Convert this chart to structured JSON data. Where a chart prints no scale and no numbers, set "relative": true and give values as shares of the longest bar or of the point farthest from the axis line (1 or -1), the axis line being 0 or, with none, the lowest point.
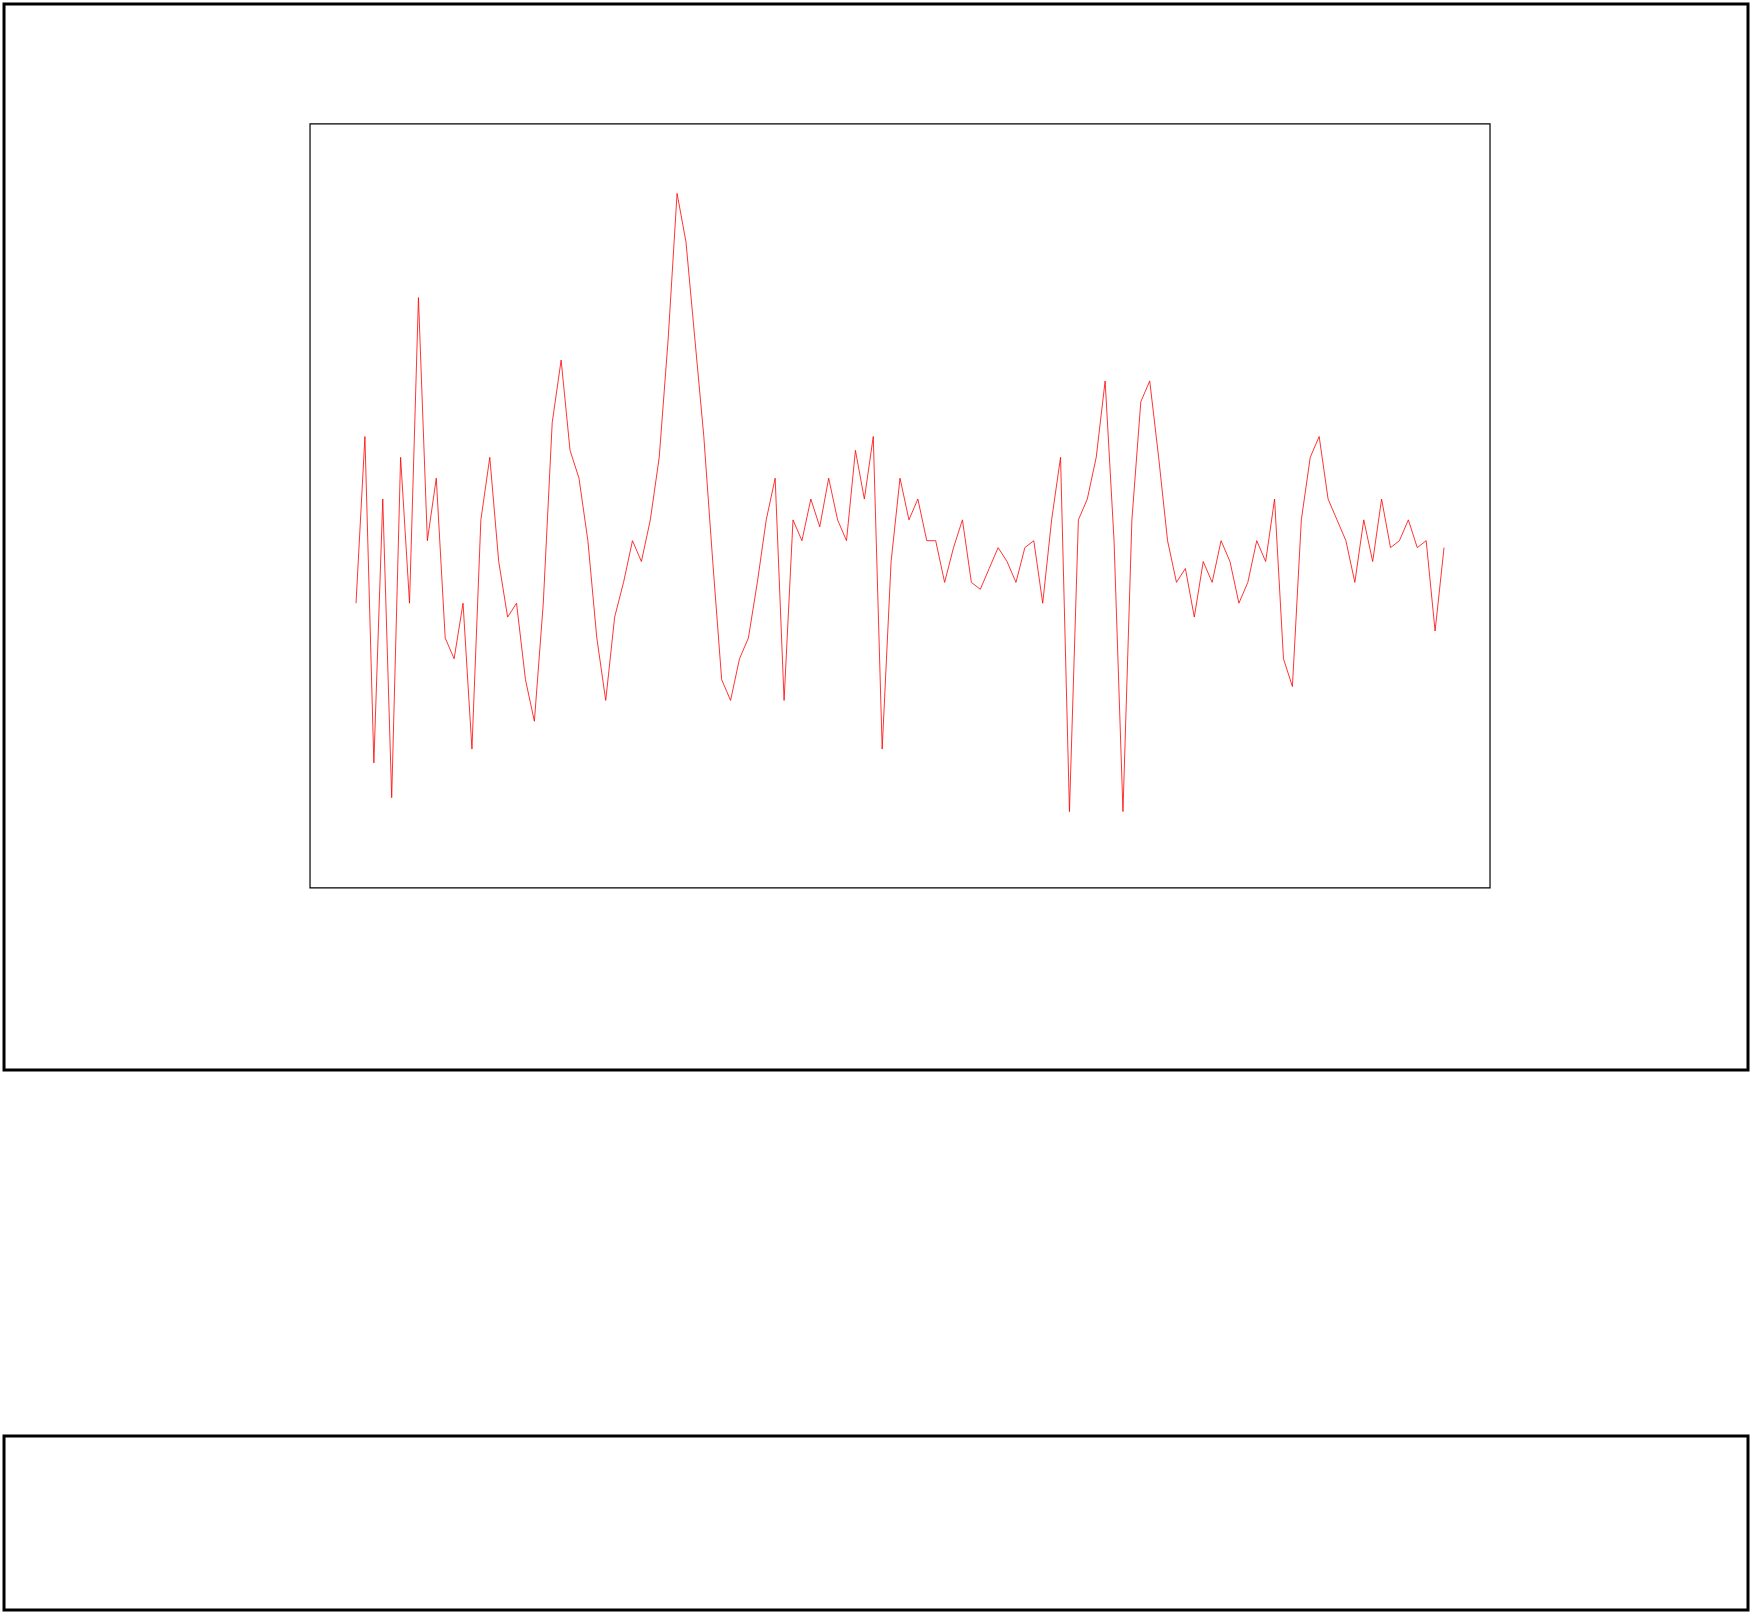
{
  "chart_data": {
    "type": "line",
    "relative": true,
    "categories": [
      null,
      null,
      null,
      null,
      null,
      null,
      null,
      null,
      null,
      null,
      null,
      null,
      null,
      null,
      null,
      null,
      null,
      null,
      null,
      null,
      null,
      null,
      null,
      null,
      null,
      null,
      null,
      null,
      null,
      null,
      null,
      null,
      null,
      null,
      null,
      null,
      null,
      null,
      null,
      null,
      null,
      null,
      null,
      null,
      null,
      null,
      null,
      null,
      null,
      null,
      null,
      null,
      null,
      null,
      null,
      null,
      null,
      null,
      null,
      null,
      null,
      null,
      null,
      null,
      null,
      null,
      null,
      null,
      null,
      null,
      null,
      null,
      null,
      null,
      null,
      null,
      null,
      null,
      null,
      null,
      null,
      null,
      null,
      null,
      null,
      null,
      null,
      null,
      null,
      null,
      null,
      null,
      null,
      null,
      null,
      null,
      null,
      null,
      null,
      null,
      null,
      null,
      null,
      null,
      null,
      null,
      null,
      null,
      null,
      null,
      null,
      null,
      null,
      null,
      null,
      null,
      null,
      null,
      null,
      null,
      null,
      null,
      null
    ],
    "series": [
      {
        "color": "#ff0000",
        "values": [
          0.41,
          0.65,
          0.18,
          0.56,
          0.13,
          0.62,
          0.41,
          0.85,
          0.5,
          0.59,
          0.36,
          0.33,
          0.41,
          0.2,
          0.53,
          0.62,
          0.47,
          0.39,
          0.41,
          0.3,
          0.24,
          0.41,
          0.67,
          0.76,
          0.63,
          0.59,
          0.5,
          0.36,
          0.27,
          0.39,
          0.44,
          0.5,
          0.47,
          0.53,
          0.62,
          0.79,
          1.0,
          0.93,
          0.79,
          0.65,
          0.47,
          0.3,
          0.27,
          0.33,
          0.36,
          0.44,
          0.53,
          0.59,
          0.27,
          0.53,
          0.5,
          0.56,
          0.52,
          0.59,
          0.53,
          0.5,
          0.63,
          0.56,
          0.65,
          0.2,
          0.47,
          0.59,
          0.53,
          0.56,
          0.5,
          0.5,
          0.44,
          0.49,
          0.53,
          0.44,
          0.43,
          0.46,
          0.49,
          0.47,
          0.44,
          0.49,
          0.5,
          0.41,
          0.53,
          0.62,
          0.11,
          0.53,
          0.56,
          0.62,
          0.73,
          0.5,
          0.11,
          0.53,
          0.7,
          0.73,
          0.62,
          0.5,
          0.44,
          0.46,
          0.39,
          0.47,
          0.44,
          0.5,
          0.47,
          0.41,
          0.44,
          0.5,
          0.47,
          0.56,
          0.33,
          0.29,
          0.53,
          0.62,
          0.65,
          0.56,
          0.53,
          0.5,
          0.44,
          0.53,
          0.47,
          0.56,
          0.49,
          0.5,
          0.53,
          0.49,
          0.5,
          0.37,
          0.49
        ]
      }
    ]
  }
}
